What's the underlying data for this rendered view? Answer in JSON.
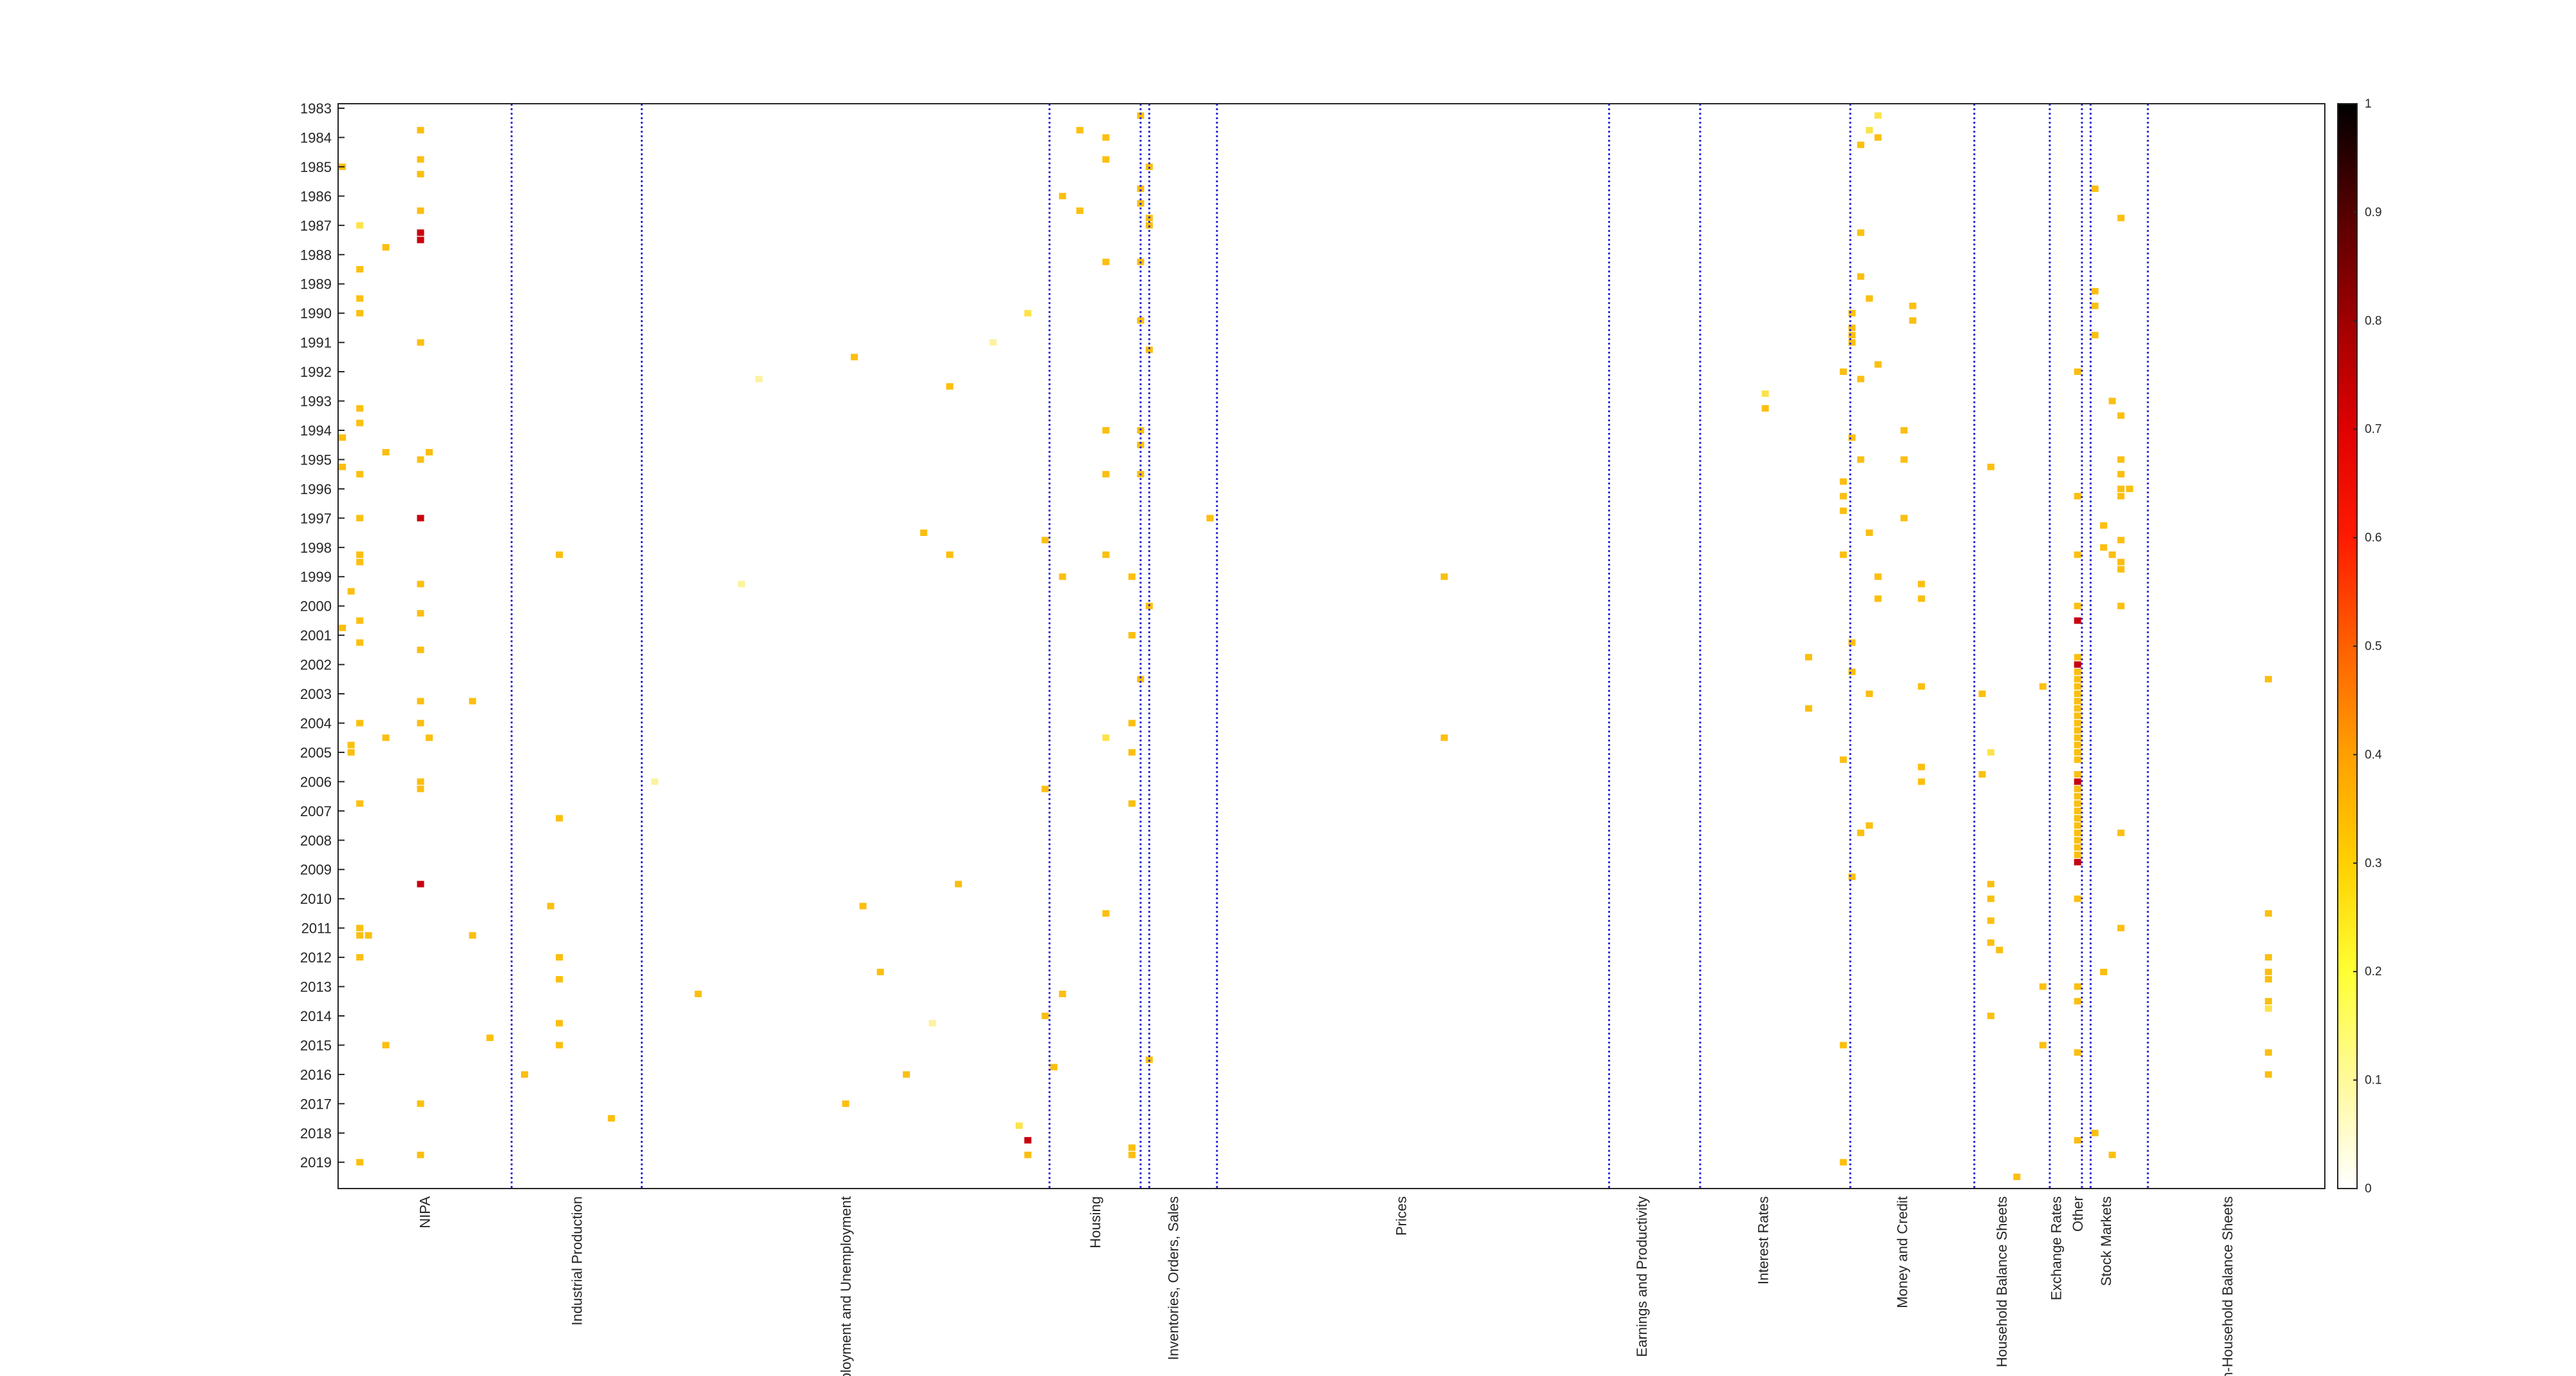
{
  "chart_data": {
    "type": "heatmap",
    "title": "",
    "xlabel": "",
    "ylabel": "",
    "y_tick_labels": [
      "1983",
      "1984",
      "1985",
      "1986",
      "1987",
      "1988",
      "1989",
      "1990",
      "1991",
      "1992",
      "1993",
      "1994",
      "1995",
      "1996",
      "1997",
      "1998",
      "1999",
      "2000",
      "2001",
      "2002",
      "2003",
      "2004",
      "2005",
      "2006",
      "2007",
      "2008",
      "2009",
      "2010",
      "2011",
      "2012",
      "2013",
      "2014",
      "2015",
      "2016",
      "2017",
      "2018",
      "2019"
    ],
    "y_range": [
      1983.0,
      2019.75
    ],
    "x_range": [
      0,
      229
    ],
    "groups": [
      {
        "name": "NIPA",
        "start": 0,
        "end": 20
      },
      {
        "name": "Industrial Production",
        "start": 20,
        "end": 35
      },
      {
        "name": "Employment and Unemployment",
        "start": 35,
        "end": 82
      },
      {
        "name": "Housing",
        "start": 82,
        "end": 92.5
      },
      {
        "name": "Inventories, Orders, Sales",
        "start": 92.5,
        "end": 100
      },
      {
        "name": "Prices",
        "start": 100,
        "end": 145
      },
      {
        "name": "Earnings and Productivity",
        "start": 145,
        "end": 155.5
      },
      {
        "name": "Interest Rates",
        "start": 155.5,
        "end": 173
      },
      {
        "name": "Money and Credit",
        "start": 173,
        "end": 187.5
      },
      {
        "name": "Household Balance Sheets",
        "start": 187.5,
        "end": 196
      },
      {
        "name": "Exchange Rates",
        "start": 196,
        "end": 200
      },
      {
        "name": "Other",
        "start": 200,
        "end": 201
      },
      {
        "name": "Stock Markets",
        "start": 201,
        "end": 206.5
      },
      {
        "name": "Non-Household Balance Sheets",
        "start": 206.5,
        "end": 229
      }
    ],
    "boundaries": [
      20,
      35,
      82,
      92.5,
      93.5,
      101.3,
      146.5,
      157,
      174.3,
      188.6,
      197.3,
      201,
      202,
      208.6
    ],
    "colorbar": {
      "range": [
        0,
        1
      ],
      "ticks": [
        "0",
        "0.1",
        "0.2",
        "0.3",
        "0.4",
        "0.5",
        "0.6",
        "0.7",
        "0.8",
        "0.9",
        "1"
      ],
      "colormap": "hot-reversed"
    },
    "cells": [
      [
        9,
        1983.75,
        0.33
      ],
      [
        9,
        1984.75,
        0.33
      ],
      [
        9,
        1985.25,
        0.33
      ],
      [
        9,
        1986.5,
        0.33
      ],
      [
        9,
        1987.25,
        0.8
      ],
      [
        9,
        1987.5,
        0.8
      ],
      [
        0,
        1985.0,
        0.33
      ],
      [
        2,
        1987.0,
        0.22
      ],
      [
        5,
        1987.75,
        0.33
      ],
      [
        2,
        1988.5,
        0.33
      ],
      [
        2,
        1989.5,
        0.33
      ],
      [
        2,
        1990.0,
        0.33
      ],
      [
        9,
        1991.0,
        0.33
      ],
      [
        2,
        1993.25,
        0.33
      ],
      [
        2,
        1993.75,
        0.33
      ],
      [
        0,
        1994.25,
        0.33
      ],
      [
        5,
        1994.75,
        0.33
      ],
      [
        9,
        1995.0,
        0.33
      ],
      [
        10,
        1994.75,
        0.33
      ],
      [
        0,
        1995.25,
        0.33
      ],
      [
        2,
        1995.5,
        0.33
      ],
      [
        9,
        1997.0,
        0.85
      ],
      [
        2,
        1997.0,
        0.33
      ],
      [
        2,
        1998.25,
        0.33
      ],
      [
        2,
        1998.5,
        0.33
      ],
      [
        9,
        1999.25,
        0.33
      ],
      [
        1,
        1999.5,
        0.33
      ],
      [
        9,
        2000.25,
        0.33
      ],
      [
        2,
        2000.5,
        0.33
      ],
      [
        0,
        2000.75,
        0.33
      ],
      [
        2,
        2001.25,
        0.33
      ],
      [
        9,
        2001.5,
        0.33
      ],
      [
        9,
        2003.25,
        0.33
      ],
      [
        2,
        2004.0,
        0.33
      ],
      [
        9,
        2004.0,
        0.33
      ],
      [
        5,
        2004.5,
        0.33
      ],
      [
        10,
        2004.5,
        0.33
      ],
      [
        1,
        2004.75,
        0.33
      ],
      [
        1,
        2005.0,
        0.33
      ],
      [
        9,
        2006.0,
        0.33
      ],
      [
        9,
        2006.25,
        0.33
      ],
      [
        2,
        2006.75,
        0.33
      ],
      [
        9,
        2009.5,
        0.85
      ],
      [
        2,
        2011.0,
        0.33
      ],
      [
        2,
        2011.25,
        0.33
      ],
      [
        3,
        2011.25,
        0.33
      ],
      [
        2,
        2012.0,
        0.33
      ],
      [
        5,
        2015.0,
        0.33
      ],
      [
        9,
        2017.0,
        0.33
      ],
      [
        9,
        2018.75,
        0.33
      ],
      [
        2,
        2019.0,
        0.33
      ],
      [
        15,
        2003.25,
        0.33
      ],
      [
        15,
        2011.25,
        0.33
      ],
      [
        17,
        2014.75,
        0.33
      ],
      [
        24,
        2010.25,
        0.33
      ],
      [
        25,
        1998.25,
        0.33
      ],
      [
        25,
        2007.25,
        0.33
      ],
      [
        25,
        2012.0,
        0.33
      ],
      [
        25,
        2012.75,
        0.33
      ],
      [
        25,
        2014.25,
        0.33
      ],
      [
        25,
        2015.0,
        0.33
      ],
      [
        21,
        2016.0,
        0.33
      ],
      [
        31,
        2017.5,
        0.33
      ],
      [
        36,
        2006.0,
        0.12
      ],
      [
        41,
        2013.25,
        0.33
      ],
      [
        48,
        1992.25,
        0.1
      ],
      [
        46,
        1999.25,
        0.12
      ],
      [
        59,
        1991.5,
        0.33
      ],
      [
        62,
        2012.5,
        0.33
      ],
      [
        60,
        2010.25,
        0.33
      ],
      [
        58,
        2017.0,
        0.33
      ],
      [
        65,
        2016.0,
        0.33
      ],
      [
        67,
        1997.5,
        0.33
      ],
      [
        68,
        2014.25,
        0.15
      ],
      [
        70,
        1992.5,
        0.33
      ],
      [
        70,
        1998.25,
        0.33
      ],
      [
        71,
        2009.5,
        0.33
      ],
      [
        75,
        1991.0,
        0.1
      ],
      [
        79,
        1990.0,
        0.2
      ],
      [
        78,
        2017.75,
        0.28
      ],
      [
        79,
        2018.25,
        0.8
      ],
      [
        79,
        2018.75,
        0.33
      ],
      [
        81,
        1997.75,
        0.33
      ],
      [
        81,
        2006.25,
        0.33
      ],
      [
        81,
        2014.0,
        0.33
      ],
      [
        83,
        1986.0,
        0.33
      ],
      [
        83,
        1999.0,
        0.33
      ],
      [
        83,
        2013.25,
        0.33
      ],
      [
        82,
        2015.75,
        0.33
      ],
      [
        85,
        1983.75,
        0.33
      ],
      [
        85,
        1986.5,
        0.33
      ],
      [
        88,
        1984.0,
        0.33
      ],
      [
        88,
        1984.75,
        0.33
      ],
      [
        88,
        1988.25,
        0.33
      ],
      [
        88,
        1994.0,
        0.33
      ],
      [
        88,
        1995.5,
        0.33
      ],
      [
        88,
        1998.25,
        0.33
      ],
      [
        88,
        2004.5,
        0.22
      ],
      [
        88,
        2010.5,
        0.33
      ],
      [
        91,
        1999.0,
        0.33
      ],
      [
        91,
        2001.0,
        0.33
      ],
      [
        91,
        2004.0,
        0.33
      ],
      [
        91,
        2005.0,
        0.33
      ],
      [
        91,
        2006.75,
        0.33
      ],
      [
        91,
        2018.5,
        0.33
      ],
      [
        91,
        2018.75,
        0.33
      ],
      [
        92,
        1983.25,
        0.33
      ],
      [
        92,
        1985.75,
        0.33
      ],
      [
        92,
        1986.25,
        0.33
      ],
      [
        92,
        1988.25,
        0.33
      ],
      [
        92,
        1990.25,
        0.33
      ],
      [
        92,
        1994.0,
        0.33
      ],
      [
        92,
        1994.5,
        0.33
      ],
      [
        92,
        1995.5,
        0.33
      ],
      [
        92,
        2002.5,
        0.33
      ],
      [
        93,
        1985.0,
        0.33
      ],
      [
        93,
        1986.75,
        0.33
      ],
      [
        93,
        1987.0,
        0.33
      ],
      [
        93,
        1991.25,
        0.33
      ],
      [
        93,
        2000.0,
        0.33
      ],
      [
        93,
        2015.5,
        0.33
      ],
      [
        100,
        1997.0,
        0.33
      ],
      [
        127,
        1999.0,
        0.33
      ],
      [
        127,
        2004.5,
        0.33
      ],
      [
        164,
        1992.75,
        0.2
      ],
      [
        164,
        1993.25,
        0.33
      ],
      [
        169,
        2001.75,
        0.33
      ],
      [
        169,
        2003.5,
        0.33
      ],
      [
        173,
        1992.0,
        0.33
      ],
      [
        173,
        1995.75,
        0.33
      ],
      [
        173,
        1996.25,
        0.33
      ],
      [
        173,
        1996.75,
        0.33
      ],
      [
        173,
        1998.25,
        0.33
      ],
      [
        173,
        2005.25,
        0.33
      ],
      [
        173,
        2015.0,
        0.33
      ],
      [
        173,
        2019.0,
        0.33
      ],
      [
        174,
        1994.25,
        0.33
      ],
      [
        174,
        2001.25,
        0.33
      ],
      [
        174,
        2002.25,
        0.33
      ],
      [
        174,
        2009.25,
        0.33
      ],
      [
        175,
        1995.0,
        0.33
      ],
      [
        175,
        1988.75,
        0.33
      ],
      [
        175,
        2007.75,
        0.33
      ],
      [
        175,
        1992.25,
        0.33
      ],
      [
        175,
        1987.25,
        0.33
      ],
      [
        175,
        1984.25,
        0.33
      ],
      [
        176,
        1983.75,
        0.22
      ],
      [
        176,
        1997.5,
        0.33
      ],
      [
        176,
        2003.0,
        0.33
      ],
      [
        176,
        2007.5,
        0.33
      ],
      [
        176,
        1989.5,
        0.33
      ],
      [
        177,
        1983.25,
        0.2
      ],
      [
        177,
        1984.0,
        0.33
      ],
      [
        177,
        1991.75,
        0.33
      ],
      [
        177,
        1999.0,
        0.33
      ],
      [
        177,
        1999.75,
        0.33
      ],
      [
        174,
        1990.0,
        0.33
      ],
      [
        174,
        1990.5,
        0.33
      ],
      [
        174,
        1990.75,
        0.33
      ],
      [
        174,
        1991.0,
        0.33
      ],
      [
        180,
        1994.0,
        0.33
      ],
      [
        180,
        1995.0,
        0.33
      ],
      [
        180,
        1997.0,
        0.33
      ],
      [
        181,
        1989.75,
        0.33
      ],
      [
        181,
        1990.25,
        0.33
      ],
      [
        182,
        1999.25,
        0.33
      ],
      [
        182,
        1999.75,
        0.33
      ],
      [
        182,
        2002.75,
        0.33
      ],
      [
        182,
        2005.5,
        0.33
      ],
      [
        182,
        2006.0,
        0.33
      ],
      [
        189,
        2003.0,
        0.33
      ],
      [
        189,
        2005.75,
        0.33
      ],
      [
        190,
        2005.0,
        0.22
      ],
      [
        190,
        1995.25,
        0.33
      ],
      [
        190,
        2009.5,
        0.33
      ],
      [
        190,
        2010.0,
        0.33
      ],
      [
        190,
        2010.75,
        0.33
      ],
      [
        190,
        2011.5,
        0.33
      ],
      [
        190,
        2014.0,
        0.33
      ],
      [
        191,
        2011.75,
        0.33
      ],
      [
        193,
        2019.5,
        0.33
      ],
      [
        196,
        2002.75,
        0.33
      ],
      [
        196,
        2013.0,
        0.33
      ],
      [
        196,
        2015.0,
        0.33
      ],
      [
        200,
        1992.0,
        0.33
      ],
      [
        200,
        1996.25,
        0.33
      ],
      [
        200,
        1998.25,
        0.33
      ],
      [
        200,
        2000.0,
        0.33
      ],
      [
        200,
        2000.5,
        0.85
      ],
      [
        200,
        2001.75,
        0.33
      ],
      [
        200,
        2002.0,
        0.85
      ],
      [
        200,
        2002.25,
        0.33
      ],
      [
        200,
        2002.5,
        0.33
      ],
      [
        200,
        2002.75,
        0.33
      ],
      [
        200,
        2003.0,
        0.33
      ],
      [
        200,
        2003.25,
        0.33
      ],
      [
        200,
        2003.5,
        0.33
      ],
      [
        200,
        2003.75,
        0.33
      ],
      [
        200,
        2004.0,
        0.33
      ],
      [
        200,
        2004.25,
        0.33
      ],
      [
        200,
        2004.5,
        0.33
      ],
      [
        200,
        2004.75,
        0.33
      ],
      [
        200,
        2005.0,
        0.33
      ],
      [
        200,
        2005.25,
        0.33
      ],
      [
        200,
        2005.75,
        0.33
      ],
      [
        200,
        2006.0,
        0.85
      ],
      [
        200,
        2006.25,
        0.33
      ],
      [
        200,
        2006.5,
        0.33
      ],
      [
        200,
        2006.75,
        0.33
      ],
      [
        200,
        2007.0,
        0.33
      ],
      [
        200,
        2007.25,
        0.33
      ],
      [
        200,
        2007.5,
        0.33
      ],
      [
        200,
        2007.75,
        0.33
      ],
      [
        200,
        2008.0,
        0.33
      ],
      [
        200,
        2008.25,
        0.33
      ],
      [
        200,
        2008.5,
        0.33
      ],
      [
        200,
        2008.75,
        0.85
      ],
      [
        200,
        2010.0,
        0.33
      ],
      [
        200,
        2013.0,
        0.33
      ],
      [
        200,
        2013.5,
        0.33
      ],
      [
        200,
        2015.25,
        0.33
      ],
      [
        200,
        2018.25,
        0.33
      ],
      [
        202,
        1985.75,
        0.33
      ],
      [
        202,
        1989.25,
        0.33
      ],
      [
        202,
        1989.75,
        0.33
      ],
      [
        202,
        1990.75,
        0.33
      ],
      [
        203,
        1997.25,
        0.33
      ],
      [
        203,
        2012.5,
        0.33
      ],
      [
        202,
        2018.0,
        0.33
      ],
      [
        203,
        1998.0,
        0.33
      ],
      [
        204,
        1993.0,
        0.33
      ],
      [
        204,
        1998.25,
        0.33
      ],
      [
        204,
        2018.75,
        0.33
      ],
      [
        205,
        1986.75,
        0.33
      ],
      [
        205,
        1993.5,
        0.33
      ],
      [
        205,
        1995.0,
        0.33
      ],
      [
        205,
        1995.5,
        0.33
      ],
      [
        205,
        1996.0,
        0.33
      ],
      [
        205,
        1996.25,
        0.33
      ],
      [
        205,
        1997.75,
        0.33
      ],
      [
        205,
        1998.5,
        0.33
      ],
      [
        205,
        1998.75,
        0.33
      ],
      [
        205,
        2000.0,
        0.33
      ],
      [
        205,
        2007.75,
        0.33
      ],
      [
        205,
        2011.0,
        0.33
      ],
      [
        206,
        1996.0,
        0.33
      ],
      [
        222,
        2002.5,
        0.33
      ],
      [
        222,
        2010.5,
        0.33
      ],
      [
        222,
        2012.0,
        0.33
      ],
      [
        222,
        2012.5,
        0.33
      ],
      [
        222,
        2012.75,
        0.33
      ],
      [
        222,
        2013.5,
        0.33
      ],
      [
        222,
        2013.75,
        0.28
      ],
      [
        222,
        2015.25,
        0.33
      ],
      [
        222,
        2016.0,
        0.33
      ]
    ]
  }
}
